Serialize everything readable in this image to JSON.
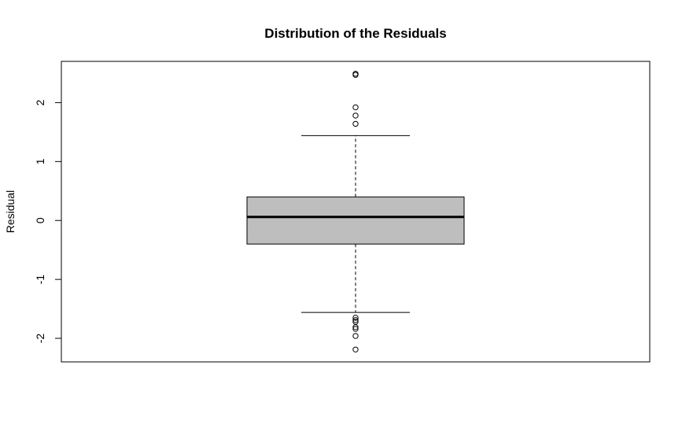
{
  "chart_data": {
    "type": "box",
    "title": "Distribution of the Residuals",
    "xlabel": "",
    "ylabel": "Residual",
    "ylim": [
      -2.4,
      2.7
    ],
    "yticks": [
      -2,
      -1,
      0,
      1,
      2
    ],
    "ytick_labels": [
      "-2",
      "-1",
      "0",
      "1",
      "2"
    ],
    "grid": false,
    "legend": "none",
    "box": {
      "whisker_low": -1.56,
      "q1": -0.4,
      "median": 0.06,
      "q3": 0.4,
      "whisker_high": 1.44
    },
    "outliers": [
      2.47,
      2.49,
      1.92,
      1.78,
      1.64,
      -1.65,
      -1.69,
      -1.72,
      -1.81,
      -1.84,
      -1.96,
      -2.19
    ],
    "colors": {
      "box_fill": "#bebebe",
      "stroke": "#000000"
    }
  }
}
